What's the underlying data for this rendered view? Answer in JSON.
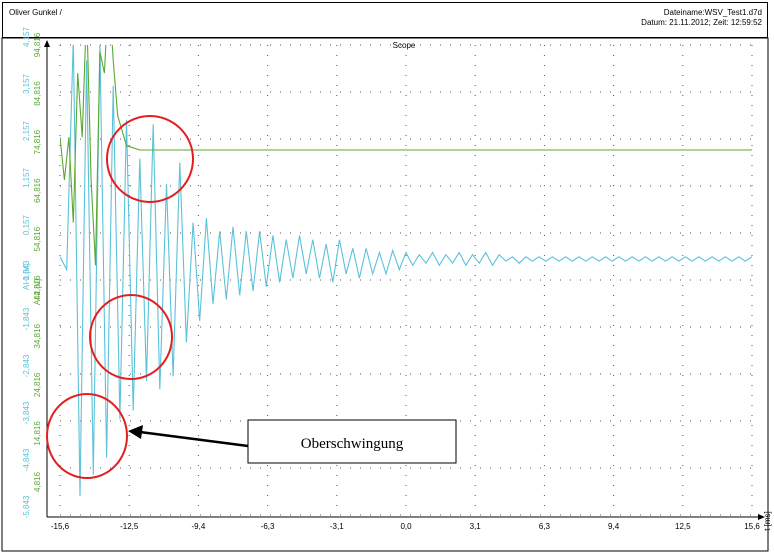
{
  "header": {
    "author": "Oliver Gunkel /",
    "filename": "Dateiname:WSV_Test1.d7d",
    "datetime": "Datum: 21.11.2012; Zeit: 12:59:52"
  },
  "colors": {
    "series_ai": "#5bc2d9",
    "series_ai1": "#5aa832",
    "annotation": "#e41e1e"
  },
  "chart_data": {
    "type": "line",
    "title": "Scope",
    "xlabel": "t [ms]",
    "xlim": [
      -15.6,
      15.6
    ],
    "x_ticks": [
      "-15,6",
      "-12,5",
      "-9,4",
      "-6,3",
      "-3,1",
      "0,0",
      "3,1",
      "6,3",
      "9,4",
      "12,5",
      "15,6"
    ],
    "y_axes": [
      {
        "label": "AI 1 [V]",
        "color": "#5bc2d9",
        "ticks": [
          "-5,843",
          "-4,843",
          "-3,843",
          "-2,843",
          "-1,843",
          "-0,843",
          "0,157",
          "1,157",
          "2,157",
          "3,157",
          "4,157"
        ]
      },
      {
        "label": "AI 2 [V]",
        "color": "#5aa832",
        "ticks": [
          "4,816",
          "14,816",
          "24,816",
          "34,816",
          "44,816",
          "54,816",
          "64,816",
          "74,816",
          "84,816",
          "94,816"
        ]
      }
    ],
    "series": [
      {
        "name": "AI 1 [V]",
        "color": "#5bc2d9",
        "x": [
          -15.6,
          -15.3,
          -15.0,
          -14.7,
          -14.4,
          -14.1,
          -13.8,
          -13.5,
          -13.2,
          -12.9,
          -12.6,
          -12.3,
          -12.0,
          -11.7,
          -11.4,
          -11.1,
          -10.8,
          -10.5,
          -10.2,
          -9.9,
          -9.6,
          -9.3,
          -9.0,
          -8.7,
          -8.4,
          -8.1,
          -7.8,
          -7.5,
          -7.2,
          -6.9,
          -6.6,
          -6.3,
          -6.0,
          -5.7,
          -5.4,
          -5.1,
          -4.8,
          -4.5,
          -4.2,
          -3.9,
          -3.6,
          -3.3,
          -3.0,
          -2.7,
          -2.4,
          -2.1,
          -1.8,
          -1.5,
          -1.2,
          -0.9,
          -0.6,
          -0.3,
          0.0,
          0.3,
          0.6,
          0.9,
          1.2,
          1.5,
          1.8,
          2.1,
          2.4,
          2.7,
          3.0,
          3.3,
          3.6,
          3.9,
          4.2,
          4.5,
          4.8,
          5.1,
          5.4,
          5.7,
          6.0,
          6.3,
          6.6,
          6.9,
          7.2,
          7.5,
          7.8,
          8.1,
          8.4,
          8.7,
          9.0,
          9.3,
          9.6,
          9.9,
          10.2,
          10.5,
          10.8,
          11.1,
          11.4,
          11.7,
          12.0,
          12.3,
          12.6,
          12.9,
          13.2,
          13.5,
          13.8,
          14.1,
          14.4,
          14.7,
          15.0,
          15.3,
          15.6
        ],
        "y": [
          0.2,
          -0.1,
          5.3,
          -5.4,
          4.8,
          -4.9,
          5.2,
          -4.5,
          4.2,
          -3.6,
          3.4,
          -3.4,
          2.5,
          -2.7,
          3.3,
          -2.9,
          1.9,
          -2.6,
          2.4,
          -1.8,
          1.0,
          -1.3,
          1.1,
          -0.9,
          0.8,
          -0.8,
          0.9,
          -0.7,
          0.8,
          -0.6,
          0.8,
          -0.5,
          0.7,
          -0.4,
          0.6,
          -0.3,
          0.7,
          -0.2,
          0.6,
          -0.3,
          0.5,
          -0.4,
          0.6,
          -0.2,
          0.4,
          -0.3,
          0.4,
          -0.2,
          0.3,
          -0.2,
          0.35,
          -0.1,
          0.3,
          0.0,
          0.25,
          0.05,
          0.3,
          0.0,
          0.25,
          0.05,
          0.3,
          0.0,
          0.25,
          0.05,
          0.3,
          0.0,
          0.25,
          0.1,
          0.2,
          0.05,
          0.2,
          0.1,
          0.2,
          0.1,
          0.2,
          0.1,
          0.2,
          0.1,
          0.2,
          0.1,
          0.2,
          0.1,
          0.2,
          0.1,
          0.2,
          0.1,
          0.2,
          0.1,
          0.2,
          0.1,
          0.2,
          0.1,
          0.2,
          0.1,
          0.2,
          0.1,
          0.2,
          0.1,
          0.2,
          0.1,
          0.2,
          0.1,
          0.2,
          0.1,
          0.2
        ]
      },
      {
        "name": "AI 2 [V]",
        "color": "#5aa832",
        "x": [
          -15.6,
          -15.4,
          -15.2,
          -15.0,
          -14.8,
          -14.6,
          -14.4,
          -14.2,
          -14.0,
          -13.8,
          -13.6,
          -13.4,
          -13.2,
          -13.0,
          -12.6,
          -12.0,
          -10.0,
          -5.0,
          0.0,
          5.0,
          10.0,
          15.6
        ],
        "y": [
          3.0,
          2.0,
          3.0,
          1.0,
          4.5,
          3.0,
          6.0,
          2.0,
          0.0,
          5.0,
          4.5,
          6.5,
          4.8,
          3.5,
          2.8,
          2.7,
          2.7,
          2.7,
          2.7,
          2.7,
          2.7,
          2.7
        ]
      }
    ],
    "annotations": [
      {
        "type": "circle",
        "color": "#e41e1e"
      },
      {
        "type": "circle",
        "color": "#e41e1e"
      },
      {
        "type": "circle",
        "color": "#e41e1e"
      },
      {
        "type": "callout",
        "text": "Oberschwingung"
      }
    ],
    "grid": true
  }
}
